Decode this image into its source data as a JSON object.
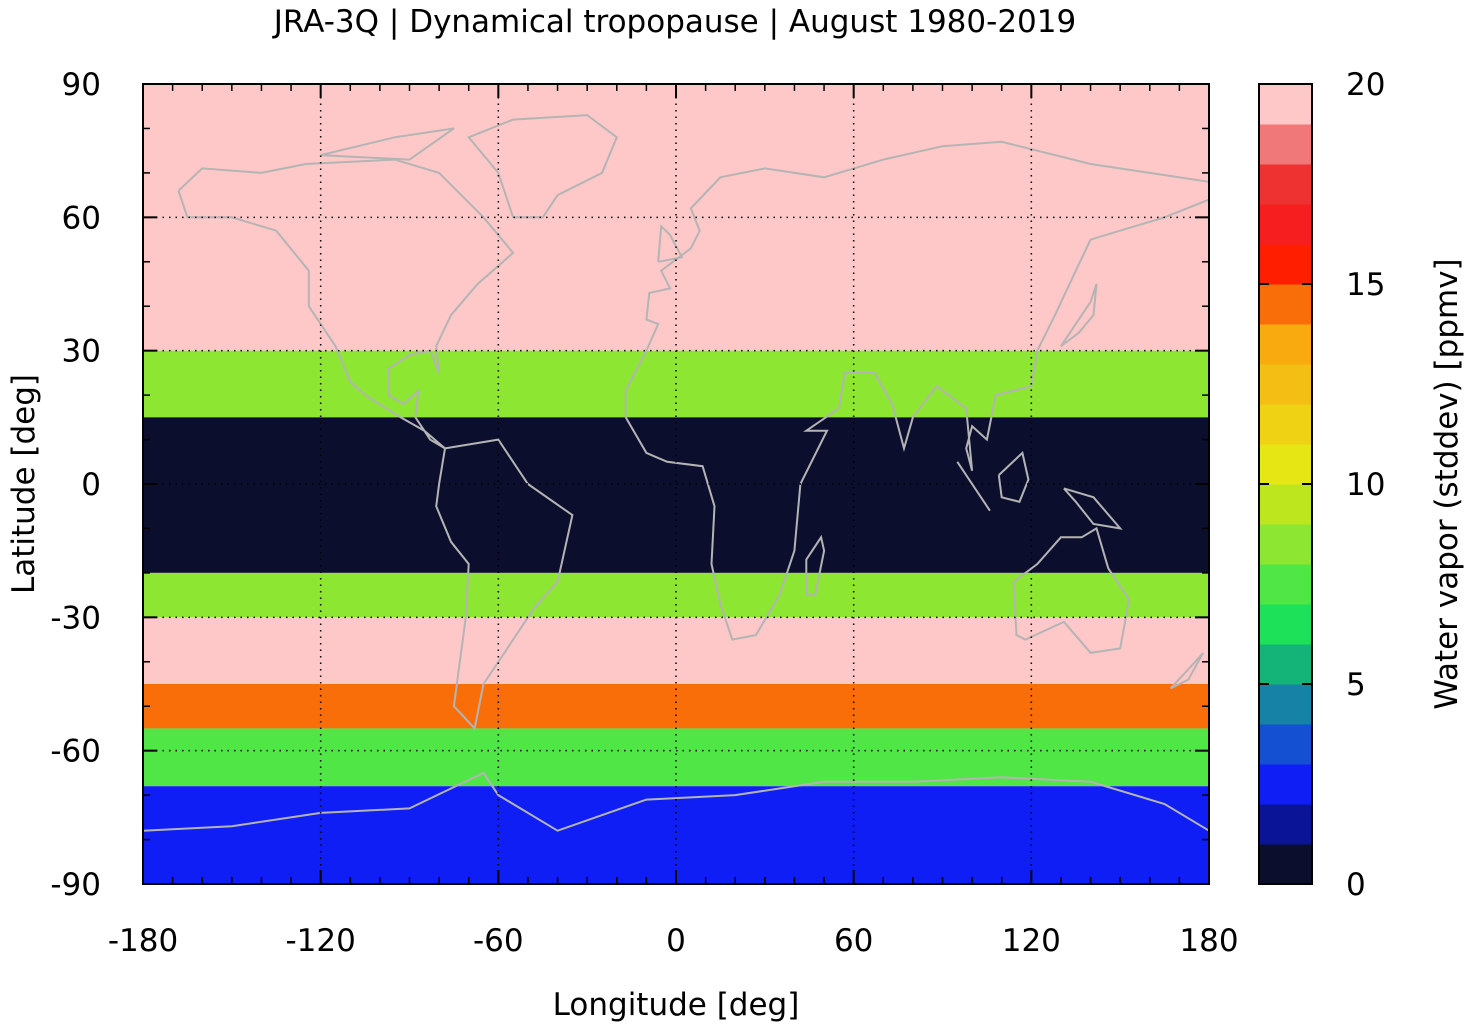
{
  "chart_data": {
    "type": "heatmap",
    "title": "JRA-3Q | Dynamical tropopause | August 1980-2019",
    "xlabel": "Longitude [deg]",
    "ylabel": "Latitude [deg]",
    "colorbar_label": "Water vapor (stddev) [ppmv]",
    "xlim": [
      -180,
      180
    ],
    "ylim": [
      -90,
      90
    ],
    "x_ticks": [
      -180,
      -120,
      -60,
      0,
      60,
      120,
      180
    ],
    "y_ticks": [
      90,
      60,
      30,
      0,
      -30,
      -60,
      -90
    ],
    "x_tick_labels": [
      "-180",
      "-120",
      "-60",
      "0",
      "60",
      "120",
      "180"
    ],
    "y_tick_labels": [
      "90",
      "60",
      "30",
      "0",
      "-30",
      "-60",
      "-90"
    ],
    "colorbar_range": [
      0,
      20
    ],
    "colorbar_ticks": [
      0,
      5,
      10,
      15,
      20
    ],
    "colorbar_tick_labels": [
      "0",
      "5",
      "10",
      "15",
      "20"
    ],
    "grid": true,
    "coastlines": true,
    "color_levels": [
      {
        "from": 0,
        "to": 1,
        "color": "#0c0e2e"
      },
      {
        "from": 1,
        "to": 2,
        "color": "#0a1496"
      },
      {
        "from": 2,
        "to": 3,
        "color": "#0f1ef5"
      },
      {
        "from": 3,
        "to": 4,
        "color": "#1450d2"
      },
      {
        "from": 4,
        "to": 5,
        "color": "#1682a5"
      },
      {
        "from": 5,
        "to": 6,
        "color": "#14b478"
      },
      {
        "from": 6,
        "to": 7,
        "color": "#1ee15a"
      },
      {
        "from": 7,
        "to": 8,
        "color": "#50e646"
      },
      {
        "from": 8,
        "to": 9,
        "color": "#8ce632"
      },
      {
        "from": 9,
        "to": 10,
        "color": "#bee61e"
      },
      {
        "from": 10,
        "to": 11,
        "color": "#e6e614"
      },
      {
        "from": 11,
        "to": 12,
        "color": "#f0d214"
      },
      {
        "from": 12,
        "to": 13,
        "color": "#f5be14"
      },
      {
        "from": 13,
        "to": 14,
        "color": "#f8aa0e"
      },
      {
        "from": 14,
        "to": 15,
        "color": "#fa6e0a"
      },
      {
        "from": 15,
        "to": 16,
        "color": "#ff1e00"
      },
      {
        "from": 16,
        "to": 17,
        "color": "#f61e1e"
      },
      {
        "from": 17,
        "to": 18,
        "color": "#ee3232"
      },
      {
        "from": 18,
        "to": 19,
        "color": "#f07878"
      },
      {
        "from": 19,
        "to": 20,
        "color": "#ffc8c8"
      }
    ],
    "field_description_by_latitude": [
      {
        "lat": [
          30,
          90
        ],
        "value": 20
      },
      {
        "lat": [
          15,
          30
        ],
        "value": 8
      },
      {
        "lat": [
          -20,
          15
        ],
        "value": 0.5
      },
      {
        "lat": [
          -30,
          -20
        ],
        "value": 8
      },
      {
        "lat": [
          -45,
          -30
        ],
        "value": 20
      },
      {
        "lat": [
          -55,
          -45
        ],
        "value": 14
      },
      {
        "lat": [
          -68,
          -55
        ],
        "value": 7
      },
      {
        "lat": [
          -90,
          -68
        ],
        "value": 2.5
      }
    ]
  }
}
